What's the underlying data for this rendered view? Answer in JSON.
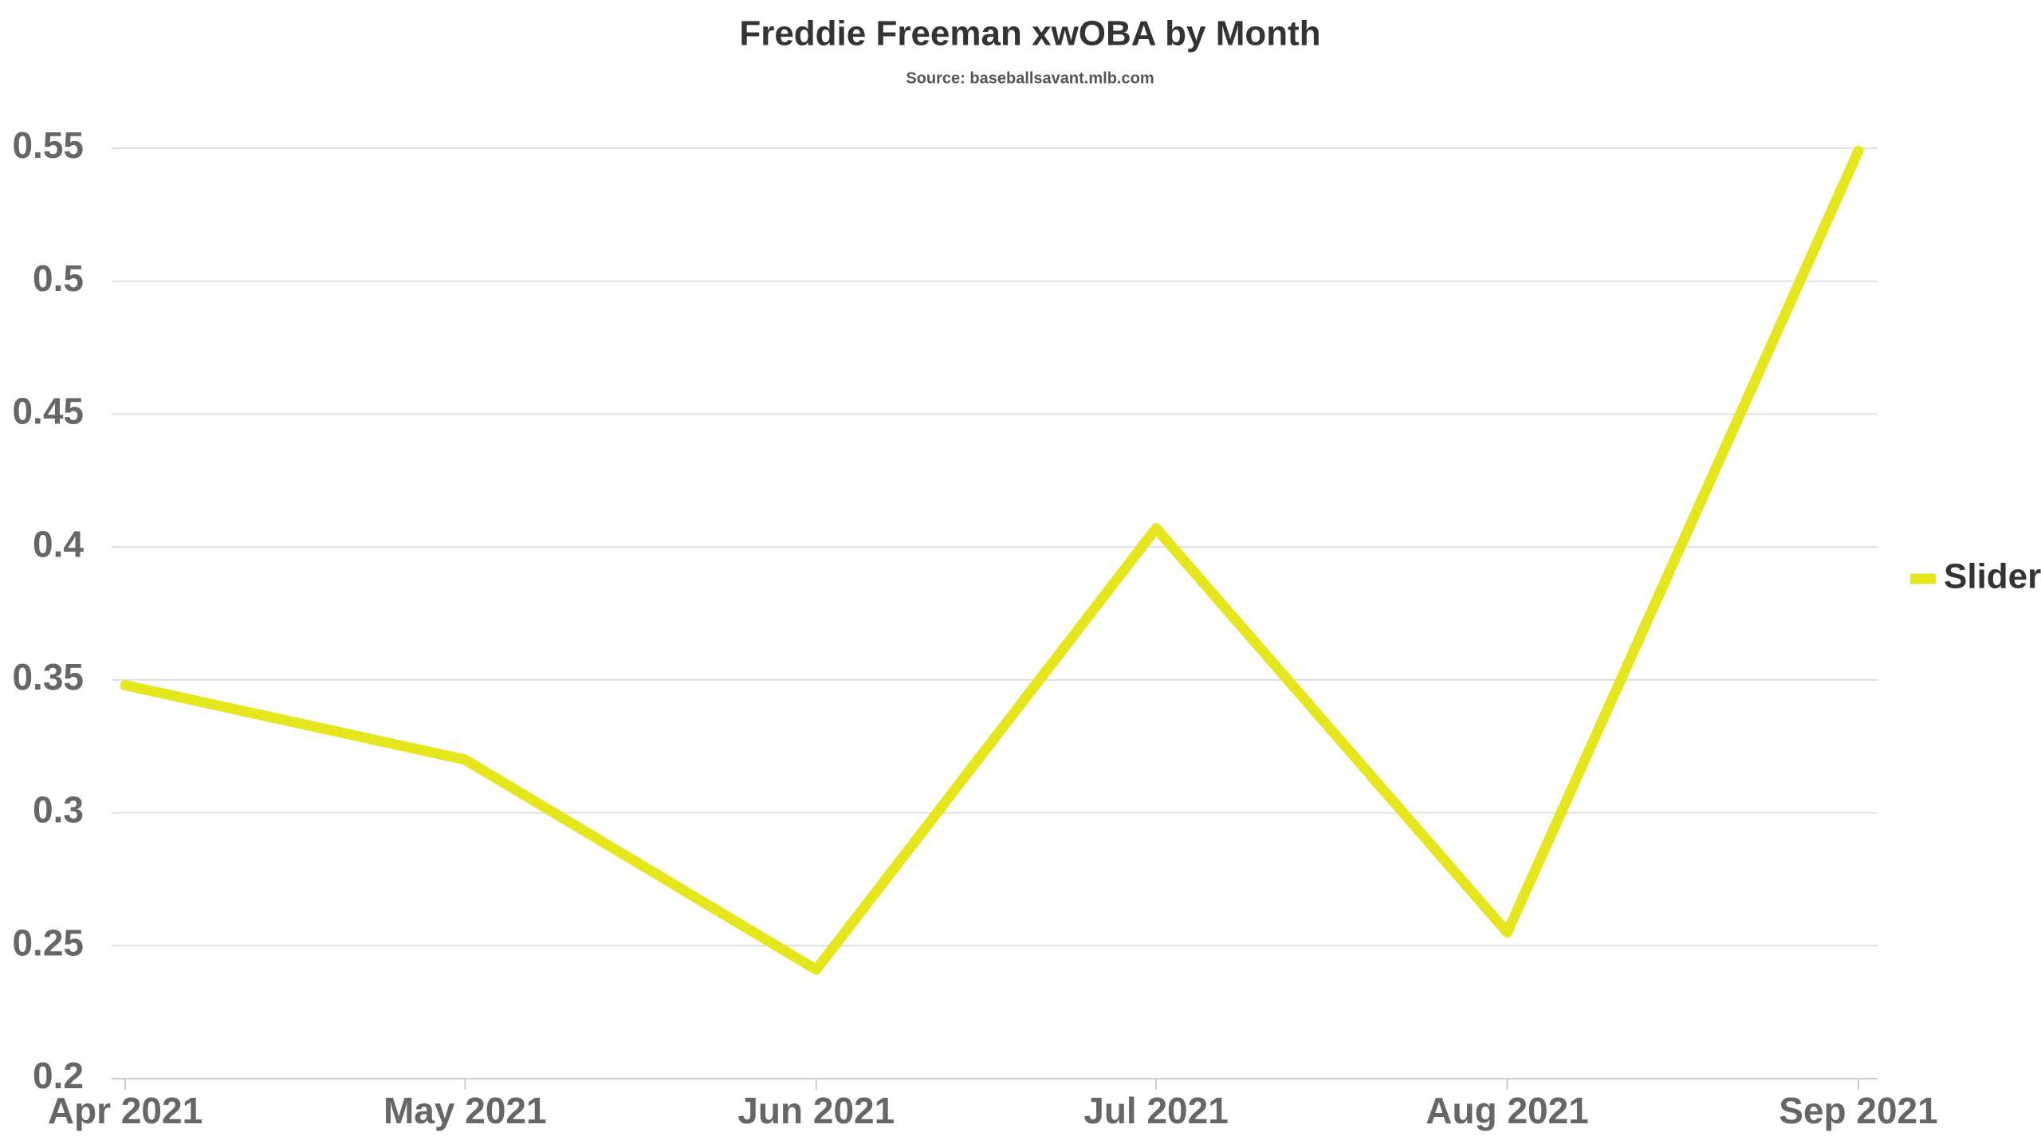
{
  "chart_data": {
    "type": "line",
    "title": "Freddie Freeman xwOBA by Month",
    "subtitle": "Source: baseballsavant.mlb.com",
    "x": [
      "Apr 2021",
      "May 2021",
      "Jun 2021",
      "Jul 2021",
      "Aug 2021",
      "Sep 2021"
    ],
    "series": [
      {
        "name": "Slider",
        "color": "#e6e61e",
        "values": [
          0.348,
          0.32,
          0.241,
          0.407,
          0.255,
          0.549
        ]
      }
    ],
    "ylim": [
      0.2,
      0.55
    ],
    "yticks": [
      0.2,
      0.25,
      0.3,
      0.35,
      0.4,
      0.45,
      0.5,
      0.55
    ],
    "grid": true,
    "legend": "right"
  }
}
